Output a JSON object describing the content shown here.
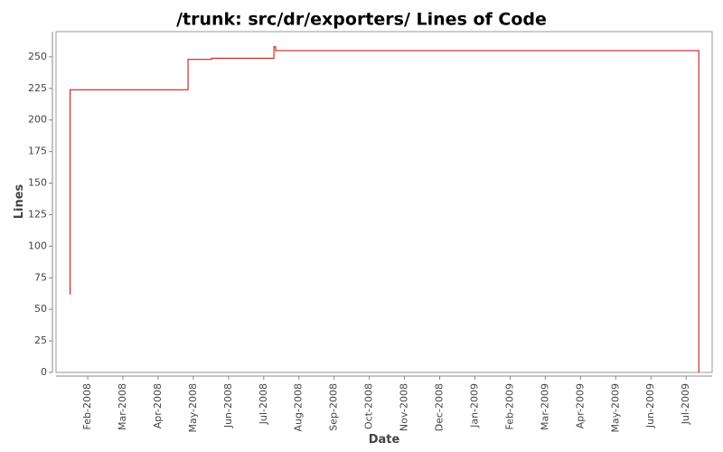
{
  "chart_data": {
    "type": "line",
    "step": "post",
    "title": "/trunk: src/dr/exporters/ Lines of Code",
    "x_label": "Date",
    "y_label": "Lines",
    "x": [
      1.49,
      1.5,
      4.85,
      5.52,
      7.29,
      7.34,
      19.36
    ],
    "values": [
      62,
      224,
      248,
      249,
      258,
      255,
      0
    ],
    "color": "#cc0000",
    "xlim": [
      1.1,
      19.74
    ],
    "xticks": [
      {
        "value": 2,
        "label": "Feb-2008"
      },
      {
        "value": 3,
        "label": "Mar-2008"
      },
      {
        "value": 4,
        "label": "Apr-2008"
      },
      {
        "value": 5,
        "label": "May-2008"
      },
      {
        "value": 6,
        "label": "Jun-2008"
      },
      {
        "value": 7,
        "label": "Jul-2008"
      },
      {
        "value": 8,
        "label": "Aug-2008"
      },
      {
        "value": 9,
        "label": "Sep-2008"
      },
      {
        "value": 10,
        "label": "Oct-2008"
      },
      {
        "value": 11,
        "label": "Nov-2008"
      },
      {
        "value": 12,
        "label": "Dec-2008"
      },
      {
        "value": 13,
        "label": "Jan-2009"
      },
      {
        "value": 14,
        "label": "Feb-2009"
      },
      {
        "value": 15,
        "label": "Mar-2009"
      },
      {
        "value": 16,
        "label": "Apr-2009"
      },
      {
        "value": 17,
        "label": "May-2009"
      },
      {
        "value": 18,
        "label": "Jun-2009"
      },
      {
        "value": 19,
        "label": "Jul-2009"
      }
    ],
    "ylim": [
      0,
      270
    ],
    "yticks": [
      0,
      25,
      50,
      75,
      100,
      125,
      150,
      175,
      200,
      225,
      250
    ]
  }
}
